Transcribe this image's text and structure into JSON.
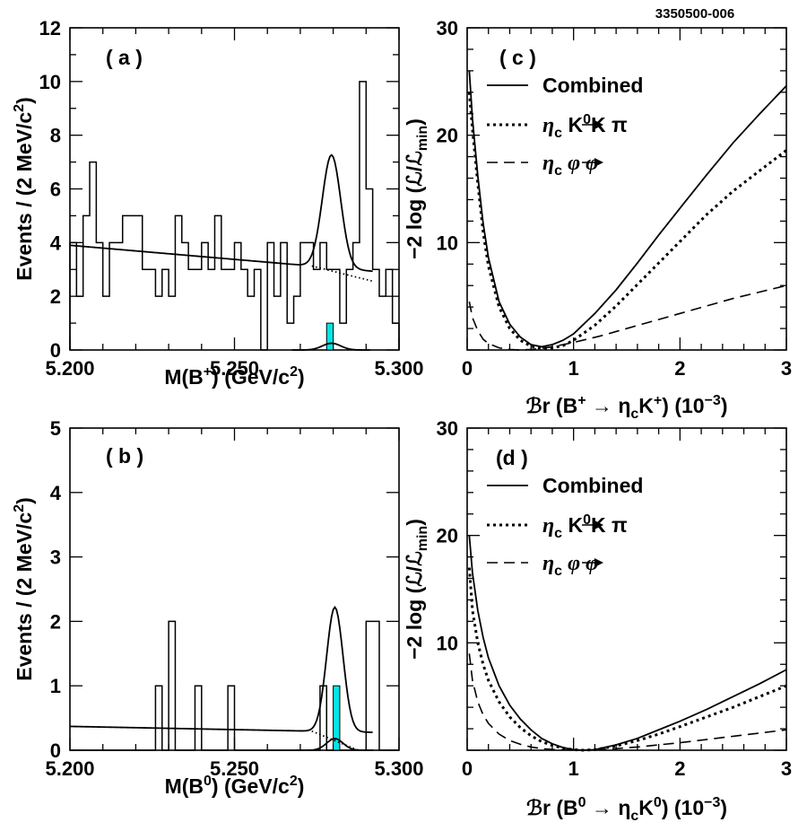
{
  "figure_id": "3350500-006",
  "chart_data": [
    {
      "panel": "a",
      "type": "histogram",
      "label": "( a )",
      "xlabel_parts": [
        "M(B",
        "+",
        ") (GeV/c",
        "2",
        ")"
      ],
      "ylabel_parts": [
        "Events / (2 MeV/c",
        "2",
        ")"
      ],
      "xlim": [
        5.2,
        5.3
      ],
      "ylim": [
        0,
        12
      ],
      "x_ticks": [
        "5.200",
        "5.250",
        "5.300"
      ],
      "y_ticks": [
        "0",
        "2",
        "4",
        "6",
        "8",
        "10",
        "12"
      ],
      "bin_width": 0.002,
      "bin_start": 5.2,
      "counts": [
        4,
        2,
        5,
        7,
        4,
        2,
        4,
        4,
        5,
        5,
        5,
        3,
        3,
        2,
        3,
        2,
        5,
        4,
        3,
        3,
        4,
        3,
        5,
        3,
        3,
        4,
        3,
        2,
        3,
        0,
        4,
        2,
        4,
        1,
        2,
        4,
        4,
        3,
        4,
        3,
        3,
        1,
        3,
        4,
        10,
        6,
        3,
        2,
        3,
        1
      ],
      "signal_counts": [
        {
          "x": 5.279,
          "count": 1
        }
      ],
      "fit": {
        "bkg_at_5200": 3.9,
        "bkg_slope_per_gev": -10.5,
        "bkg_end": 5.2735,
        "peak_mean": 5.2795,
        "peak_sigma": 0.0028,
        "peak_height": 4.2
      },
      "signal_fit": {
        "mean": 5.2795,
        "sigma": 0.0028,
        "height": 0.25
      }
    },
    {
      "panel": "b",
      "type": "histogram",
      "label": "( b )",
      "xlabel_parts": [
        "M(B",
        "0",
        ") (GeV/c",
        "2",
        ")"
      ],
      "ylabel_parts": [
        "Events / (2 MeV/c",
        "2",
        ")"
      ],
      "xlim": [
        5.2,
        5.3
      ],
      "ylim": [
        0,
        5
      ],
      "x_ticks": [
        "5.200",
        "5.250",
        "5.300"
      ],
      "y_ticks": [
        "0",
        "1",
        "2",
        "3",
        "4",
        "5"
      ],
      "bin_width": 0.002,
      "bin_start": 5.2,
      "counts": [
        0,
        0,
        0,
        0,
        0,
        0,
        0,
        0,
        0,
        0,
        0,
        0,
        0,
        1,
        0,
        2,
        0,
        0,
        0,
        1,
        0,
        0,
        0,
        0,
        1,
        0,
        0,
        0,
        0,
        0,
        0,
        0,
        0,
        0,
        0,
        0,
        0,
        0,
        1,
        0,
        0,
        0,
        0,
        0,
        0,
        2,
        2,
        0,
        0,
        0
      ],
      "signal_counts": [
        {
          "x": 5.281,
          "count": 1
        }
      ],
      "fit": {
        "bkg_at_5200": 0.37,
        "bkg_slope_per_gev": -1.0,
        "bkg_end": 5.2735,
        "peak_mean": 5.2805,
        "peak_sigma": 0.0025,
        "peak_height": 1.93
      },
      "signal_fit": {
        "mean": 5.2805,
        "sigma": 0.0025,
        "height": 0.18
      }
    },
    {
      "panel": "c",
      "type": "line",
      "label": "( c )",
      "xlabel_parts": [
        "ℬr (B",
        "+",
        " → η",
        "c",
        "K",
        "+",
        ") (10",
        "−3",
        ")"
      ],
      "ylabel_parts": [
        "−2 log (ℒ/ℒ",
        "min",
        ")"
      ],
      "xlim": [
        0,
        3
      ],
      "ylim": [
        0,
        30
      ],
      "x_ticks": [
        "0",
        "1",
        "2",
        "3"
      ],
      "y_ticks": [
        "10",
        "20",
        "30"
      ],
      "legend": [
        {
          "style": "solid",
          "text": "Combined"
        },
        {
          "style": "dotted",
          "text_parts": [
            "η",
            "c",
            "K",
            "0",
            "K π"
          ]
        },
        {
          "style": "dashed",
          "text_parts": [
            "η",
            "c",
            "φ φ"
          ]
        }
      ],
      "series": [
        {
          "name": "Combined",
          "style": "solid",
          "x": [
            0.02,
            0.05,
            0.1,
            0.15,
            0.2,
            0.3,
            0.4,
            0.5,
            0.6,
            0.7,
            0.8,
            0.9,
            1.0,
            1.2,
            1.4,
            1.6,
            1.8,
            2.0,
            2.25,
            2.5,
            2.75,
            3.0
          ],
          "y": [
            26,
            21.5,
            16.2,
            11.8,
            8.6,
            4.5,
            2.4,
            1.2,
            0.5,
            0.3,
            0.5,
            0.9,
            1.5,
            3.4,
            5.6,
            8.1,
            10.7,
            13.2,
            16.3,
            19.3,
            22.0,
            24.6
          ]
        },
        {
          "name": "eta_c -> K0 K pi",
          "style": "dotted",
          "x": [
            0.02,
            0.05,
            0.1,
            0.15,
            0.2,
            0.3,
            0.4,
            0.5,
            0.6,
            0.7,
            0.8,
            0.9,
            1.0,
            1.2,
            1.4,
            1.6,
            1.8,
            2.0,
            2.25,
            2.5,
            2.75,
            3.0
          ],
          "y": [
            24,
            20.5,
            15.5,
            11.0,
            7.8,
            4.0,
            2.0,
            0.9,
            0.35,
            0.15,
            0.2,
            0.4,
            0.9,
            2.3,
            4.1,
            6.1,
            8.1,
            10.1,
            12.6,
            14.8,
            16.7,
            18.6
          ]
        },
        {
          "name": "eta_c -> phi phi",
          "style": "dashed",
          "x": [
            0.02,
            0.05,
            0.1,
            0.15,
            0.2,
            0.3,
            0.4,
            0.5,
            0.6,
            0.7,
            0.8,
            1.0,
            1.25,
            1.5,
            1.75,
            2.0,
            2.25,
            2.5,
            2.75,
            3.0
          ],
          "y": [
            4.5,
            3.0,
            1.8,
            1.0,
            0.6,
            0.2,
            0.05,
            0.0,
            0.05,
            0.15,
            0.3,
            0.7,
            1.3,
            2.0,
            2.7,
            3.4,
            4.1,
            4.8,
            5.4,
            6.0
          ]
        }
      ]
    },
    {
      "panel": "d",
      "type": "line",
      "label": "(d )",
      "xlabel_parts": [
        "ℬr (B",
        "0",
        " → η",
        "c",
        "K",
        "0",
        ") (10",
        "−3",
        ")"
      ],
      "ylabel_parts": [
        "−2 log (ℒ/ℒ",
        "min",
        ")"
      ],
      "xlim": [
        0,
        3
      ],
      "ylim": [
        0,
        30
      ],
      "x_ticks": [
        "0",
        "1",
        "2",
        "3"
      ],
      "y_ticks": [
        "10",
        "20",
        "30"
      ],
      "legend": [
        {
          "style": "solid",
          "text": "Combined"
        },
        {
          "style": "dotted",
          "text_parts": [
            "η",
            "c",
            "K",
            "0",
            "K π"
          ]
        },
        {
          "style": "dashed",
          "text_parts": [
            "η",
            "c",
            "φ φ"
          ]
        }
      ],
      "series": [
        {
          "name": "Combined",
          "style": "solid",
          "x": [
            0.02,
            0.05,
            0.1,
            0.15,
            0.2,
            0.3,
            0.4,
            0.5,
            0.6,
            0.7,
            0.8,
            0.9,
            1.0,
            1.1,
            1.2,
            1.4,
            1.6,
            1.8,
            2.0,
            2.25,
            2.5,
            2.75,
            3.0
          ],
          "y": [
            20,
            16.5,
            13.0,
            10.5,
            8.6,
            6.0,
            4.2,
            2.9,
            1.9,
            1.1,
            0.6,
            0.25,
            0.05,
            0.0,
            0.05,
            0.5,
            1.1,
            1.9,
            2.7,
            3.8,
            5.0,
            6.2,
            7.5
          ]
        },
        {
          "name": "eta_c -> K0 K pi",
          "style": "dotted",
          "x": [
            0.02,
            0.05,
            0.1,
            0.15,
            0.2,
            0.3,
            0.4,
            0.5,
            0.6,
            0.7,
            0.8,
            0.9,
            1.0,
            1.1,
            1.2,
            1.4,
            1.6,
            1.8,
            2.0,
            2.25,
            2.5,
            2.75,
            3.0
          ],
          "y": [
            17,
            13.0,
            10.0,
            8.0,
            6.5,
            4.5,
            3.1,
            2.1,
            1.35,
            0.8,
            0.45,
            0.2,
            0.05,
            0.0,
            0.05,
            0.4,
            0.9,
            1.5,
            2.2,
            3.1,
            4.0,
            5.0,
            6.0
          ]
        },
        {
          "name": "eta_c -> phi phi",
          "style": "dashed",
          "x": [
            0.02,
            0.05,
            0.1,
            0.15,
            0.2,
            0.3,
            0.4,
            0.5,
            0.6,
            0.7,
            0.8,
            1.0,
            1.2,
            1.4,
            1.6,
            1.8,
            2.0,
            2.25,
            2.5,
            2.75,
            3.0
          ],
          "y": [
            9.0,
            6.5,
            4.5,
            3.3,
            2.5,
            1.5,
            0.9,
            0.55,
            0.3,
            0.15,
            0.07,
            0.0,
            0.05,
            0.15,
            0.3,
            0.5,
            0.7,
            1.0,
            1.3,
            1.6,
            1.9
          ]
        }
      ]
    }
  ]
}
